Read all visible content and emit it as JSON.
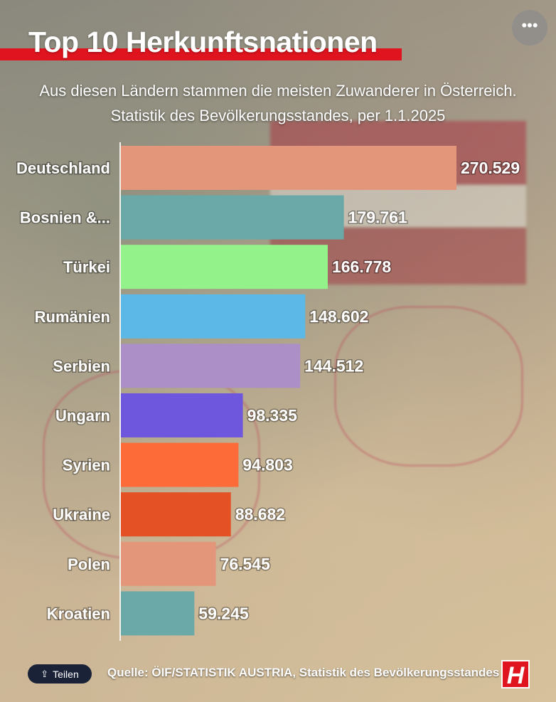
{
  "header": {
    "title": "Top 10 Herkunftsnationen",
    "subtitle_line1": "Aus diesen Ländern stammen die meisten Zuwanderer in Österreich.",
    "subtitle_line2": "Statistik des Bevölkerungsstandes, per 1.1.2025",
    "more_label": "•••"
  },
  "chart_data": {
    "type": "bar",
    "orientation": "horizontal",
    "title": "Top 10 Herkunftsnationen",
    "subtitle": "Aus diesen Ländern stammen die meisten Zuwanderer in Österreich. Statistik des Bevölkerungsstandes, per 1.1.2025",
    "categories": [
      "Deutschland",
      "Bosnien &...",
      "Türkei",
      "Rumänien",
      "Serbien",
      "Ungarn",
      "Syrien",
      "Ukraine",
      "Polen",
      "Kroatien"
    ],
    "values": [
      270529,
      179761,
      166778,
      148602,
      144512,
      98335,
      94803,
      88682,
      76545,
      59245
    ],
    "value_labels": [
      "270.529",
      "179.761",
      "166.778",
      "148.602",
      "144.512",
      "98.335",
      "94.803",
      "88.682",
      "76.545",
      "59.245"
    ],
    "colors": [
      "#e4967b",
      "#6aa9a8",
      "#93f28a",
      "#5cb8e6",
      "#ab8fc6",
      "#6e57dc",
      "#fd6b38",
      "#e35125",
      "#e4967b",
      "#6aa9a8"
    ],
    "xlim": [
      0,
      270529
    ],
    "grid": false,
    "legend": "none"
  },
  "footer": {
    "share_label": "Teilen",
    "share_icon": "share-icon",
    "source": "Quelle: ÖIF/STATISTIK AUSTRIA, Statistik des Bevölkerungsstandes",
    "logo_letter": "H"
  },
  "colors": {
    "brand_red": "#e0141e",
    "share_button": "#1a2238"
  }
}
